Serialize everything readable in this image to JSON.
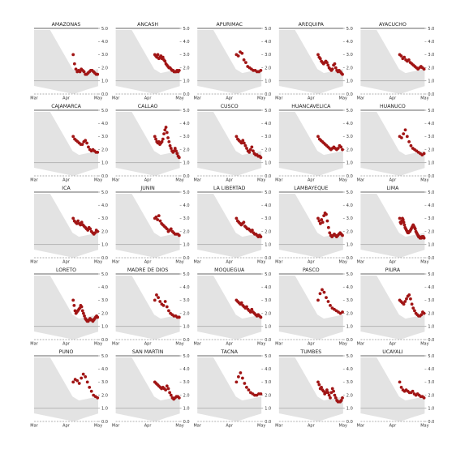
{
  "chart_data": {
    "type": "scatter",
    "layout": "small-multiples",
    "x_ticks": [
      "Mar",
      "Apr",
      "May"
    ],
    "y_ticks": [
      "0.0",
      "1.0",
      "2.0",
      "3.0",
      "4.0",
      "5.0"
    ],
    "ylim": [
      0,
      5
    ],
    "reference_line": 1.0,
    "colors": {
      "points": "#a11515",
      "band": "#e3e3e3",
      "axis": "#555555"
    },
    "panels": [
      {
        "title": "AMAZONAS",
        "y": [
          3.0,
          2.3,
          1.9,
          1.7,
          1.8,
          1.7,
          1.9,
          1.8,
          1.7,
          1.5,
          1.5,
          1.6,
          1.7,
          1.8,
          1.8,
          1.7,
          1.6,
          1.5,
          1.5
        ]
      },
      {
        "title": "ANCASH",
        "y": [
          3.0,
          2.9,
          2.8,
          3.0,
          2.7,
          2.8,
          2.9,
          2.7,
          2.8,
          2.6,
          2.5,
          2.3,
          2.2,
          2.1,
          2.0,
          2.0,
          1.9,
          1.8,
          1.8,
          1.7,
          1.7,
          1.7,
          1.8,
          1.7,
          1.8
        ]
      },
      {
        "title": "APURIMAC",
        "y": [
          3.0,
          2.9,
          3.2,
          3.1,
          2.6,
          2.4,
          2.1,
          2.0,
          1.9,
          1.8,
          1.8,
          1.7,
          1.7,
          1.8
        ]
      },
      {
        "title": "AREQUIPA",
        "y": [
          3.0,
          2.8,
          2.7,
          2.5,
          2.4,
          2.3,
          2.4,
          2.5,
          2.4,
          2.2,
          2.0,
          1.9,
          1.8,
          1.9,
          2.2,
          2.3,
          2.0,
          1.8,
          1.7,
          1.8,
          1.7,
          1.6,
          1.5
        ]
      },
      {
        "title": "AYACUCHO",
        "y": [
          3.0,
          2.9,
          2.7,
          2.8,
          2.6,
          2.5,
          2.6,
          2.4,
          2.3,
          2.2,
          2.1,
          2.0,
          1.9,
          2.0,
          2.1,
          2.0,
          1.9
        ]
      },
      {
        "title": "CAJAMARCA",
        "y": [
          3.0,
          2.8,
          2.7,
          2.6,
          2.5,
          2.4,
          2.4,
          2.6,
          2.7,
          2.5,
          2.2,
          2.0,
          1.9,
          2.0,
          1.9,
          1.8,
          1.8
        ]
      },
      {
        "title": "CALLAO",
        "y": [
          3.0,
          2.8,
          2.6,
          2.5,
          2.6,
          2.4,
          2.5,
          2.6,
          2.8,
          3.2,
          3.5,
          3.7,
          3.3,
          2.9,
          2.6,
          2.3,
          2.1,
          1.9,
          1.8,
          1.9,
          2.1,
          1.9,
          1.7,
          1.5,
          1.4
        ]
      },
      {
        "title": "CUSCO",
        "y": [
          3.0,
          2.8,
          2.7,
          2.6,
          2.5,
          2.7,
          2.5,
          2.3,
          2.1,
          1.9,
          1.8,
          2.0,
          2.2,
          1.9,
          1.7,
          1.6,
          1.6,
          1.5,
          1.5,
          1.4
        ]
      },
      {
        "title": "HUANCAVELICA",
        "y": [
          3.0,
          2.8,
          2.7,
          2.6,
          2.5,
          2.4,
          2.3,
          2.2,
          2.1,
          2.0,
          2.1,
          2.2,
          2.1,
          2.0,
          2.1,
          2.3,
          2.2,
          2.0
        ]
      },
      {
        "title": "HUANUCO",
        "y": [
          3.0,
          2.9,
          3.2,
          3.5,
          3.0,
          2.6,
          2.3,
          2.1,
          2.0,
          1.9,
          1.8,
          1.7,
          1.6,
          1.7
        ]
      },
      {
        "title": "ICA",
        "y": [
          3.0,
          2.8,
          2.7,
          2.6,
          2.8,
          2.6,
          2.5,
          2.7,
          2.5,
          2.4,
          2.3,
          2.2,
          2.1,
          2.3,
          2.2,
          2.0,
          1.9,
          1.8,
          1.9,
          2.1,
          2.0
        ]
      },
      {
        "title": "JUNIN",
        "y": [
          3.0,
          3.1,
          2.9,
          3.2,
          2.8,
          2.6,
          2.5,
          2.4,
          2.3,
          2.2,
          2.0,
          2.1,
          2.2,
          2.0,
          1.9,
          1.8,
          1.8,
          1.8,
          1.7
        ]
      },
      {
        "title": "LA LIBERTAD",
        "y": [
          3.0,
          2.8,
          2.7,
          2.6,
          2.5,
          2.6,
          2.7,
          2.4,
          2.3,
          2.2,
          2.2,
          2.1,
          2.0,
          2.1,
          1.9,
          1.8,
          1.8,
          1.7,
          1.6,
          1.7,
          1.6
        ]
      },
      {
        "title": "LAMBAYEQUE",
        "y": [
          3.0,
          2.8,
          2.6,
          2.9,
          2.7,
          3.2,
          3.4,
          3.3,
          2.8,
          2.3,
          1.9,
          1.7,
          1.6,
          1.7,
          1.8,
          1.7,
          1.6,
          1.7,
          1.8,
          1.9,
          1.8,
          1.7
        ]
      },
      {
        "title": "LIMA",
        "y": [
          3.0,
          2.7,
          2.6,
          2.8,
          3.0,
          2.9,
          2.7,
          2.5,
          2.3,
          2.2,
          2.1,
          2.0,
          1.9,
          1.9,
          2.0,
          2.0,
          2.1,
          2.2,
          2.3,
          2.4,
          2.5,
          2.4,
          2.3,
          2.2,
          2.0,
          1.9,
          1.8,
          1.7,
          1.6,
          1.6,
          1.5,
          1.5,
          1.5,
          1.6,
          1.6,
          1.6,
          1.5
        ]
      },
      {
        "title": "LORETO",
        "y": [
          3.0,
          2.6,
          2.2,
          2.0,
          2.1,
          2.2,
          2.3,
          2.4,
          2.6,
          2.5,
          2.2,
          2.0,
          1.8,
          1.6,
          1.5,
          1.4,
          1.4,
          1.5,
          1.6,
          1.5,
          1.5,
          1.4,
          1.5,
          1.6,
          1.7,
          1.8,
          1.7
        ]
      },
      {
        "title": "MADRE DE DIOS",
        "y": [
          3.0,
          3.4,
          3.2,
          2.9,
          2.7,
          2.6,
          2.9,
          2.5,
          2.2,
          2.0,
          1.9,
          1.8,
          1.8,
          1.7,
          1.7
        ]
      },
      {
        "title": "MOQUEGUA",
        "y": [
          3.0,
          2.9,
          2.8,
          2.7,
          2.8,
          2.6,
          2.5,
          2.4,
          2.5,
          2.3,
          2.2,
          2.1,
          2.3,
          2.1,
          2.0,
          1.9,
          1.8,
          1.9,
          1.8,
          1.7
        ]
      },
      {
        "title": "PASCO",
        "y": [
          3.0,
          3.5,
          3.8,
          3.6,
          3.2,
          2.9,
          2.6,
          2.4,
          2.3,
          2.2,
          2.1,
          2.0,
          2.1
        ]
      },
      {
        "title": "PIURA",
        "y": [
          3.0,
          2.9,
          2.8,
          2.7,
          2.9,
          3.1,
          3.3,
          3.4,
          3.1,
          2.7,
          2.4,
          2.2,
          2.0,
          1.9,
          1.8,
          1.8,
          1.9,
          2.1,
          2.0
        ]
      },
      {
        "title": "PUNO",
        "y": [
          3.0,
          3.2,
          3.1,
          2.9,
          3.3,
          3.6,
          3.4,
          3.0,
          2.6,
          2.3,
          2.0,
          1.9,
          1.8
        ]
      },
      {
        "title": "SAN MARTIN",
        "y": [
          3.0,
          2.9,
          2.8,
          2.7,
          2.6,
          2.5,
          2.6,
          2.5,
          2.4,
          2.7,
          2.5,
          2.2,
          2.0,
          1.8,
          1.7,
          1.8,
          1.9,
          1.9,
          1.8
        ]
      },
      {
        "title": "TACNA",
        "y": [
          3.0,
          3.4,
          3.7,
          3.3,
          2.9,
          2.6,
          2.4,
          2.2,
          2.1,
          2.0,
          2.0,
          2.1,
          2.1
        ]
      },
      {
        "title": "TUMBES",
        "y": [
          3.0,
          2.8,
          2.5,
          2.6,
          2.4,
          2.3,
          2.1,
          2.2,
          2.4,
          2.2,
          2.0,
          1.8,
          2.2,
          2.5,
          2.3,
          2.0,
          1.8,
          1.6,
          1.5,
          1.5,
          1.5,
          1.6,
          1.8
        ]
      },
      {
        "title": "UCAYALI",
        "y": [
          3.0,
          2.6,
          2.4,
          2.3,
          2.4,
          2.3,
          2.2,
          2.2,
          2.3,
          2.1,
          2.0,
          2.1,
          2.0,
          1.9,
          1.9,
          1.8
        ]
      }
    ]
  }
}
